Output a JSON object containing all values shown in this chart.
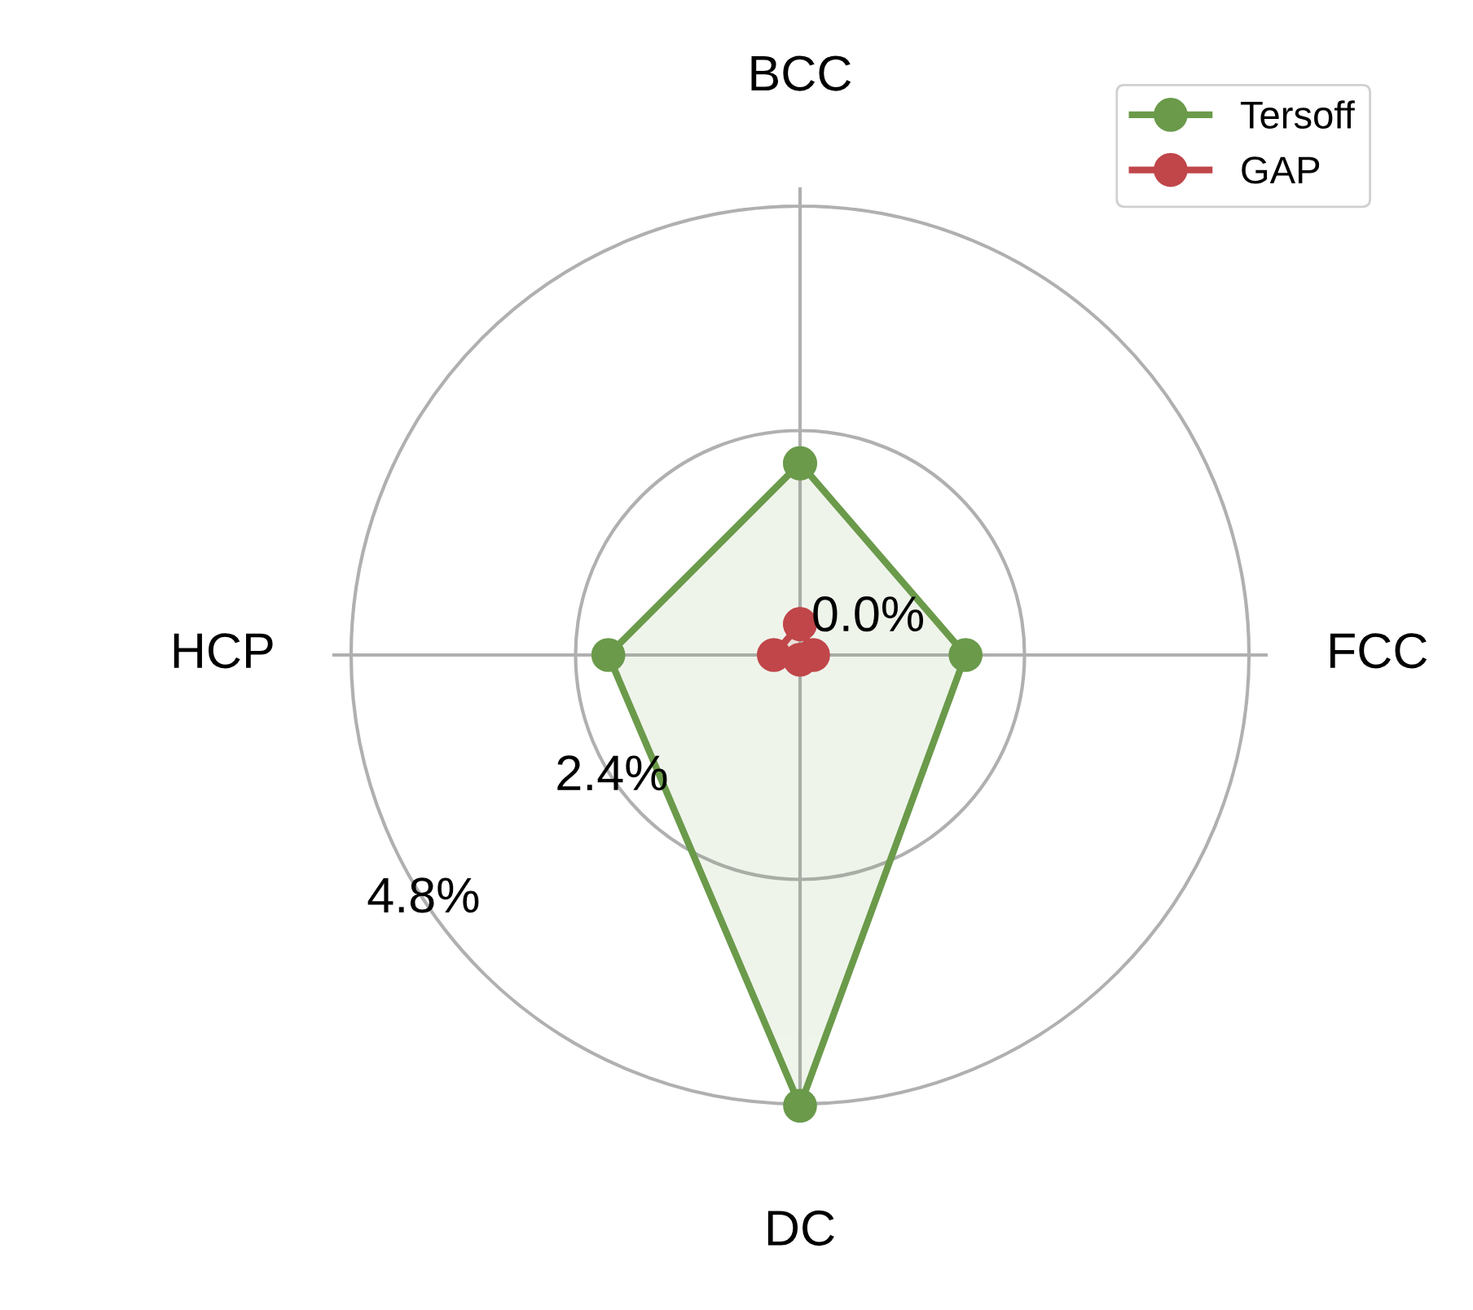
{
  "chart_data": {
    "type": "radar",
    "categories": [
      "BCC",
      "FCC",
      "DC",
      "HCP"
    ],
    "series": [
      {
        "name": "Tersoff",
        "color": "#6a9a4a",
        "values": [
          2.05,
          1.77,
          4.82,
          2.05
        ]
      },
      {
        "name": "GAP",
        "color": "#c0464a",
        "values": [
          0.33,
          0.14,
          0.05,
          0.28
        ]
      }
    ],
    "ylim": [
      0,
      5.0
    ],
    "yticks": [
      {
        "value": 0,
        "label": "0.0%"
      },
      {
        "value": 2.4,
        "label": "2.4%"
      },
      {
        "value": 4.8,
        "label": "4.8%"
      }
    ],
    "grid": true,
    "legend": "top right",
    "marker": "circle",
    "line_style": "solid"
  }
}
